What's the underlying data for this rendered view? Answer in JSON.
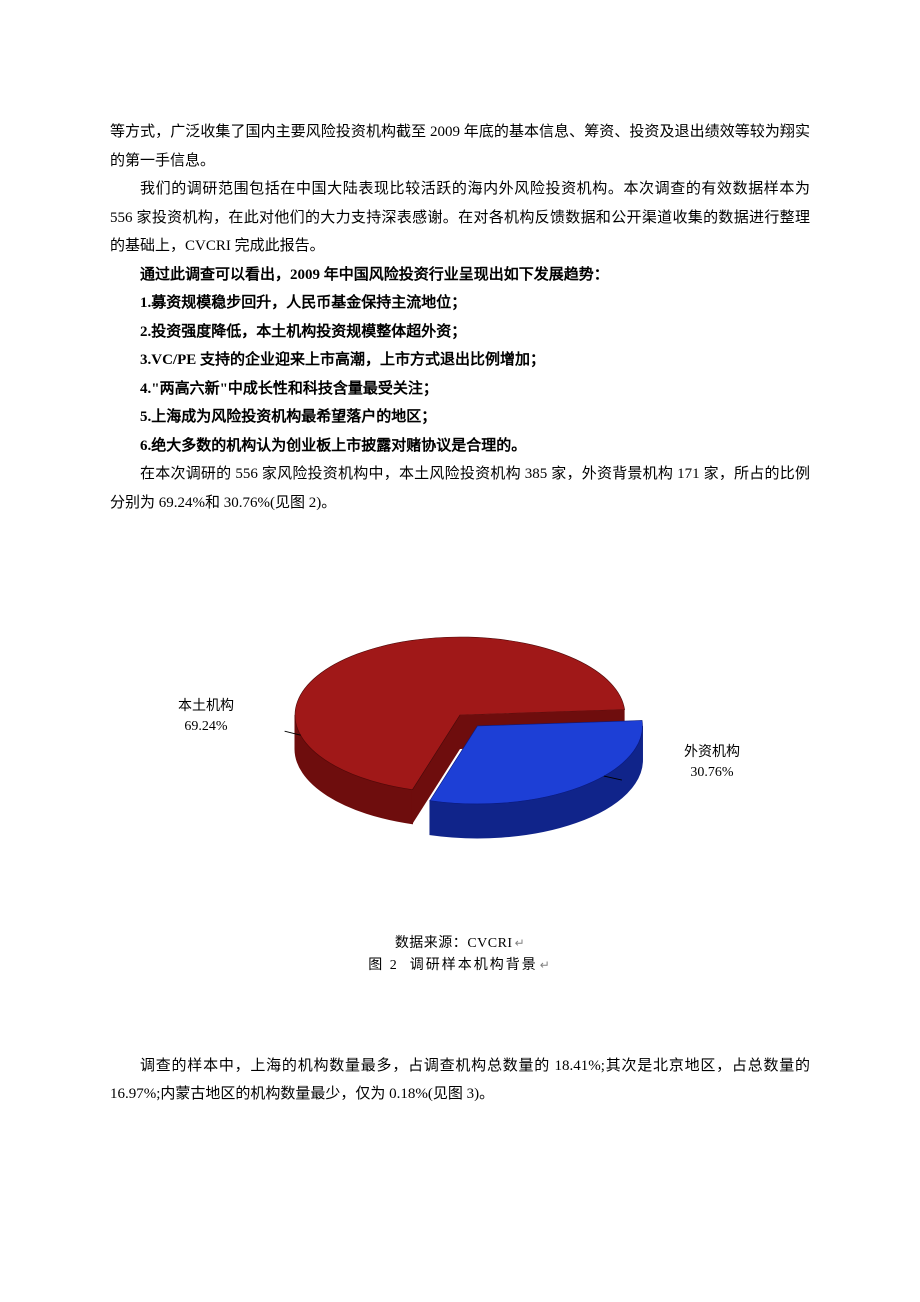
{
  "paragraphs": {
    "p1": "等方式，广泛收集了国内主要风险投资机构截至 2009 年底的基本信息、筹资、投资及退出绩效等较为翔实的第一手信息。",
    "p2": "我们的调研范围包括在中国大陆表现比较活跃的海内外风险投资机构。本次调查的有效数据样本为 556 家投资机构，在此对他们的大力支持深表感谢。在对各机构反馈数据和公开渠道收集的数据进行整理的基础上，CVCRI 完成此报告。",
    "trend_intro": "通过此调查可以看出，2009 年中国风险投资行业呈现出如下发展趋势：",
    "t1": "1.募资规模稳步回升，人民币基金保持主流地位；",
    "t2": "2.投资强度降低，本土机构投资规模整体超外资；",
    "t3": "3.VC/PE 支持的企业迎来上市高潮，上市方式退出比例增加；",
    "t4": "4.\"两高六新\"中成长性和科技含量最受关注；",
    "t5": "5.上海成为风险投资机构最希望落户的地区；",
    "t6": "6.绝大多数的机构认为创业板上市披露对赌协议是合理的。",
    "p3": "在本次调研的 556 家风险投资机构中，本土风险投资机构 385 家，外资背景机构 171 家，所占的比例分别为 69.24%和 30.76%(见图 2)。",
    "p4": "调查的样本中，上海的机构数量最多，占调查机构总数量的 18.41%;其次是北京地区，占总数量的 16.97%;内蒙古地区的机构数量最少，仅为 0.18%(见图 3)。"
  },
  "chart": {
    "type": "pie-3d-exploded",
    "slices": [
      {
        "name": "本土机构",
        "value": 69.24,
        "label_line1": "本土机构",
        "label_line2": "69.24%",
        "top_color": "#a01818",
        "side_color": "#6e0d0d"
      },
      {
        "name": "外资机构",
        "value": 30.76,
        "label_line1": "外资机构",
        "label_line2": "30.76%",
        "top_color": "#1d3fd6",
        "side_color": "#10248a"
      }
    ],
    "bg_color": "#ffffff",
    "label_fontsize": 14,
    "leader_color": "#000000",
    "source_prefix": "数据来源：",
    "source_name": "CVCRI",
    "figure_label": "图 2",
    "figure_title": "调研样本机构背景",
    "return_glyph": "↵"
  }
}
